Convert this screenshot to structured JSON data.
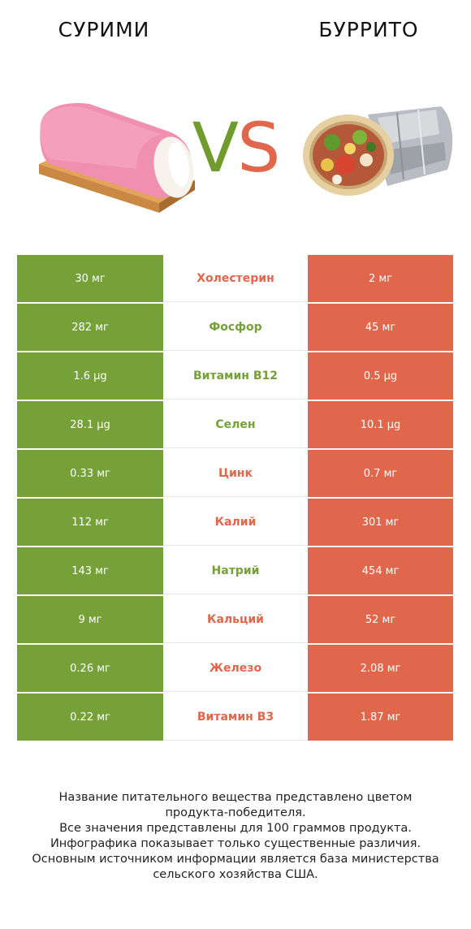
{
  "header": {
    "left_title": "СУРИМИ",
    "right_title": "БУРРИТО",
    "vs_v": "V",
    "vs_s": "S"
  },
  "colors": {
    "left_winner": "#76a038",
    "right_winner": "#e0674b"
  },
  "chart_data": {
    "type": "table",
    "columns": [
      "СУРИМИ",
      "",
      "БУРРИТО"
    ],
    "rows": [
      {
        "nutrient": "Холестерин",
        "left": "30 мг",
        "right": "2 мг",
        "winner": "right"
      },
      {
        "nutrient": "Фосфор",
        "left": "282 мг",
        "right": "45 мг",
        "winner": "left"
      },
      {
        "nutrient": "Витамин B12",
        "left": "1.6 µg",
        "right": "0.5 µg",
        "winner": "left"
      },
      {
        "nutrient": "Селен",
        "left": "28.1 µg",
        "right": "10.1 µg",
        "winner": "left"
      },
      {
        "nutrient": "Цинк",
        "left": "0.33 мг",
        "right": "0.7 мг",
        "winner": "right"
      },
      {
        "nutrient": "Калий",
        "left": "112 мг",
        "right": "301 мг",
        "winner": "right"
      },
      {
        "nutrient": "Натрий",
        "left": "143 мг",
        "right": "454 мг",
        "winner": "left"
      },
      {
        "nutrient": "Кальций",
        "left": "9 мг",
        "right": "52 мг",
        "winner": "right"
      },
      {
        "nutrient": "Железо",
        "left": "0.26 мг",
        "right": "2.08 мг",
        "winner": "right"
      },
      {
        "nutrient": "Витамин B3",
        "left": "0.22 мг",
        "right": "1.87 мг",
        "winner": "right"
      }
    ]
  },
  "footer": {
    "lines": [
      "Название питательного вещества представлено цветом",
      "продукта-победителя.",
      "Все значения представлены для 100 граммов продукта.",
      "Инфографика показывает только существенные различия.",
      "Основным источником информации является база министерства",
      "сельского хозяйства США."
    ]
  }
}
